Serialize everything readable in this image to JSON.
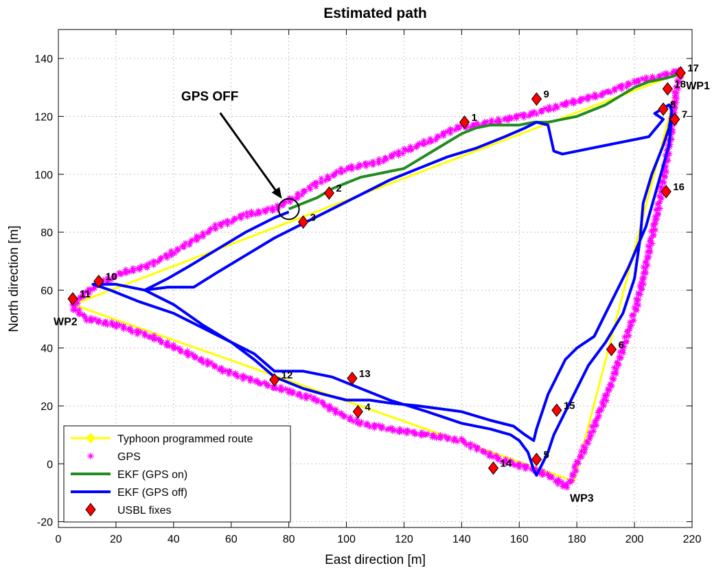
{
  "chart_data": {
    "type": "line",
    "title": "Estimated path",
    "xlabel": "East direction [m]",
    "ylabel": "North direction [m]",
    "xlim": [
      0,
      220
    ],
    "ylim": [
      -22,
      150
    ],
    "xticks": [
      0,
      20,
      40,
      60,
      80,
      100,
      120,
      140,
      160,
      180,
      200,
      220
    ],
    "yticks": [
      -20,
      0,
      20,
      40,
      60,
      80,
      100,
      120,
      140
    ],
    "grid": true,
    "legend_position": "bottom-left",
    "series": [
      {
        "name": "Typhoon programmed route",
        "style": "yellow-line-diamond",
        "color": "#ffff00",
        "x": [
          216,
          5,
          179,
          216
        ],
        "y": [
          135,
          55,
          -6,
          135
        ]
      },
      {
        "name": "GPS",
        "style": "magenta-star",
        "color": "#ff00ff",
        "x": [
          216,
          210,
          200,
          190,
          175,
          165,
          155,
          145,
          138,
          130,
          120,
          110,
          100,
          90,
          82,
          75,
          65,
          55,
          45,
          38,
          30,
          22,
          14,
          8,
          5,
          10,
          20,
          32,
          45,
          58,
          70,
          80,
          90,
          98,
          105,
          115,
          128,
          140,
          148,
          152,
          158,
          165,
          172,
          176,
          178,
          180,
          184,
          188,
          192,
          196,
          200,
          203,
          206,
          209,
          211,
          213,
          214,
          216
        ],
        "y": [
          136,
          134,
          132,
          128,
          124,
          121,
          119,
          117,
          116,
          112,
          108,
          104,
          102,
          97,
          92,
          88,
          86,
          82,
          76,
          72,
          68,
          66,
          62,
          58,
          54,
          50,
          48,
          44,
          38,
          32,
          28,
          25,
          22,
          17,
          14,
          12,
          10,
          8,
          4,
          2,
          0,
          -2,
          -5,
          -8,
          -6,
          0,
          8,
          18,
          28,
          40,
          52,
          64,
          78,
          92,
          104,
          116,
          126,
          136
        ]
      },
      {
        "name": "EKF (GPS on)",
        "style": "green-line",
        "color": "#228b22",
        "x": [
          80,
          85,
          90,
          95,
          100,
          105,
          110,
          115,
          120,
          125,
          130,
          135,
          140,
          145,
          150,
          155,
          160,
          165,
          170,
          175,
          180,
          185,
          190,
          195,
          200,
          205,
          210,
          214,
          216
        ],
        "y": [
          88,
          90,
          92,
          95,
          97,
          99,
          100,
          101,
          102,
          105,
          108,
          111,
          114,
          116,
          117,
          117,
          117,
          118,
          118,
          119,
          120,
          122,
          124,
          127,
          130,
          132,
          133,
          134,
          136
        ]
      },
      {
        "name": "EKF (GPS off)",
        "style": "blue-line",
        "color": "#0000ff",
        "x": [
          80,
          75,
          65,
          55,
          45,
          38,
          30,
          38,
          47,
          55,
          65,
          75,
          85,
          95,
          105,
          115,
          125,
          135,
          145,
          155,
          162,
          166,
          170,
          172,
          175,
          185,
          195,
          205,
          210,
          207,
          212,
          213,
          212,
          210,
          206,
          203,
          202,
          200,
          196,
          190,
          184,
          180,
          176,
          172,
          170,
          168,
          166,
          165,
          163,
          160,
          157,
          150,
          140,
          128,
          115,
          105,
          100,
          95,
          85,
          75,
          68,
          60,
          50,
          40,
          28,
          18,
          12,
          20,
          30,
          40,
          50,
          60,
          68,
          75,
          85,
          92,
          100,
          108,
          115,
          125,
          140,
          150,
          158,
          162,
          165,
          166,
          170,
          176,
          180,
          186,
          192,
          198,
          204,
          208,
          212,
          213
        ],
        "y": [
          87,
          85,
          80,
          74,
          68,
          64,
          60,
          61,
          61,
          66,
          72,
          78,
          83,
          88,
          93,
          98,
          102,
          106,
          109,
          113,
          116,
          118,
          117,
          108,
          107,
          109,
          111,
          113,
          119,
          121,
          124,
          122,
          116,
          110,
          100,
          90,
          78,
          64,
          52,
          42,
          34,
          26,
          18,
          10,
          4,
          0,
          -4,
          -2,
          4,
          8,
          10,
          12,
          14,
          18,
          22,
          26,
          28,
          30,
          32,
          32,
          38,
          42,
          47,
          52,
          56,
          60,
          62,
          62,
          60,
          55,
          48,
          42,
          36,
          30,
          26,
          24,
          22,
          22,
          21,
          20,
          18,
          15,
          13,
          10,
          8,
          12,
          24,
          36,
          40,
          44,
          56,
          68,
          82,
          96,
          110,
          121
        ]
      }
    ],
    "usbl_fixes": {
      "name": "USBL fixes",
      "style": "red-diamond",
      "color": "#ff0000",
      "points": [
        {
          "label": "1",
          "x": 141,
          "y": 118
        },
        {
          "label": "2",
          "x": 94,
          "y": 93.5
        },
        {
          "label": "3",
          "x": 85,
          "y": 83.5
        },
        {
          "label": "4",
          "x": 104,
          "y": 18
        },
        {
          "label": "5",
          "x": 166,
          "y": 1.5
        },
        {
          "label": "6",
          "x": 192,
          "y": 39.5
        },
        {
          "label": "7",
          "x": 214,
          "y": 119
        },
        {
          "label": "8",
          "x": 210,
          "y": 122.5
        },
        {
          "label": "9",
          "x": 166,
          "y": 126
        },
        {
          "label": "10",
          "x": 14,
          "y": 63
        },
        {
          "label": "11",
          "x": 5,
          "y": 57
        },
        {
          "label": "12",
          "x": 75,
          "y": 29
        },
        {
          "label": "13",
          "x": 102,
          "y": 29.5
        },
        {
          "label": "14",
          "x": 151,
          "y": -1.5
        },
        {
          "label": "15",
          "x": 173,
          "y": 18.5
        },
        {
          "label": "16",
          "x": 211,
          "y": 94
        },
        {
          "label": "17",
          "x": 216,
          "y": 135
        },
        {
          "label": "18",
          "x": 211.5,
          "y": 129.5
        }
      ]
    },
    "waypoints": [
      {
        "label": "WP1",
        "x": 216,
        "y": 135
      },
      {
        "label": "WP2",
        "x": 5,
        "y": 55
      },
      {
        "label": "WP3",
        "x": 179,
        "y": -6
      }
    ],
    "annotation": {
      "text": "GPS OFF",
      "x": 80,
      "y": 88
    }
  }
}
